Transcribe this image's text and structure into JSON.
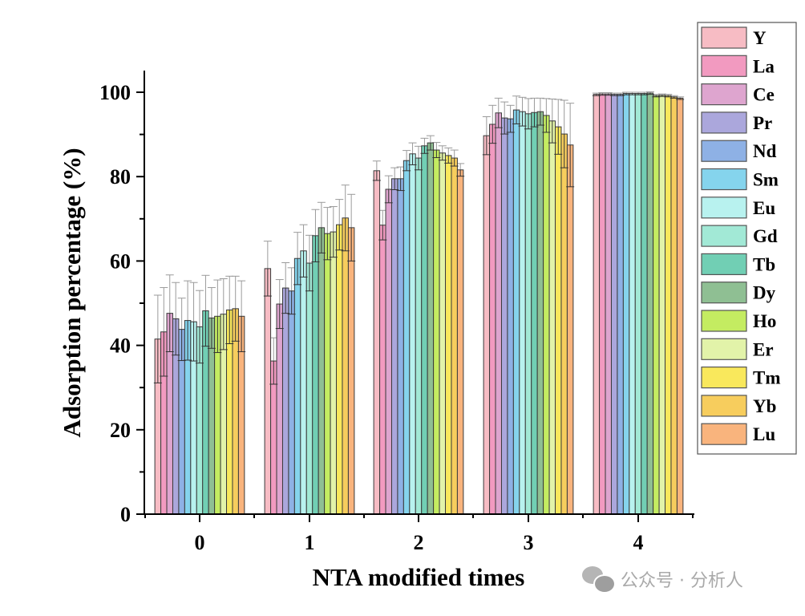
{
  "chart_data": {
    "type": "bar",
    "title": "",
    "xlabel": "NTA modified times",
    "ylabel": "Adsorption percentage (%)",
    "ylim": [
      0,
      105
    ],
    "yticks": [
      0,
      20,
      40,
      60,
      80,
      100
    ],
    "grid": false,
    "legend_position": "right",
    "categories": [
      "0",
      "1",
      "2",
      "3",
      "4"
    ],
    "series": [
      {
        "name": "Y",
        "color": "#f7bcc4",
        "values": [
          41.5,
          58.2,
          81.4,
          89.7,
          99.5
        ],
        "errors": [
          10.4,
          6.5,
          2.3,
          4.5,
          0.3
        ]
      },
      {
        "name": "La",
        "color": "#f29ac0",
        "values": [
          43.2,
          36.3,
          68.5,
          92.4,
          99.6
        ],
        "errors": [
          10.5,
          5.5,
          3.5,
          4.5,
          0.3
        ]
      },
      {
        "name": "Ce",
        "color": "#dea5cf",
        "values": [
          47.6,
          49.8,
          77.0,
          95.1,
          99.6
        ],
        "errors": [
          9.1,
          5.8,
          3.2,
          3.5,
          0.3
        ]
      },
      {
        "name": "Pr",
        "color": "#aba7dc",
        "values": [
          46.3,
          53.6,
          79.5,
          93.9,
          99.5
        ],
        "errors": [
          8.6,
          6.0,
          2.6,
          3.8,
          0.3
        ]
      },
      {
        "name": "Nd",
        "color": "#8eb1e5",
        "values": [
          43.8,
          52.9,
          79.5,
          93.7,
          99.5
        ],
        "errors": [
          7.4,
          5.5,
          2.8,
          3.2,
          0.3
        ]
      },
      {
        "name": "Sm",
        "color": "#85d4ed",
        "values": [
          45.9,
          60.6,
          83.8,
          95.8,
          99.7
        ],
        "errors": [
          9.4,
          6.2,
          2.4,
          3.3,
          0.3
        ]
      },
      {
        "name": "Eu",
        "color": "#b8f2ef",
        "values": [
          45.6,
          62.4,
          85.4,
          95.4,
          99.7
        ],
        "errors": [
          9.3,
          6.2,
          2.6,
          3.4,
          0.3
        ]
      },
      {
        "name": "Gd",
        "color": "#a2e9d6",
        "values": [
          44.4,
          59.5,
          84.4,
          94.9,
          99.7
        ],
        "errors": [
          8.6,
          6.6,
          2.8,
          3.6,
          0.3
        ]
      },
      {
        "name": "Tb",
        "color": "#71cfb4",
        "values": [
          48.2,
          66.0,
          87.3,
          95.2,
          99.7
        ],
        "errors": [
          8.4,
          6.2,
          1.8,
          3.4,
          0.3
        ]
      },
      {
        "name": "Dy",
        "color": "#8fbf93",
        "values": [
          46.5,
          67.9,
          88.0,
          95.4,
          99.8
        ],
        "errors": [
          7.2,
          6.0,
          1.7,
          3.2,
          0.3
        ]
      },
      {
        "name": "Ho",
        "color": "#c4ec61",
        "values": [
          46.9,
          66.5,
          86.3,
          94.5,
          99.2
        ],
        "errors": [
          8.6,
          6.2,
          1.8,
          4.0,
          0.3
        ]
      },
      {
        "name": "Er",
        "color": "#e2f3a9",
        "values": [
          47.4,
          66.9,
          85.6,
          93.2,
          99.3
        ],
        "errors": [
          8.4,
          6.0,
          1.7,
          5.2,
          0.3
        ]
      },
      {
        "name": "Tm",
        "color": "#f9e85c",
        "values": [
          48.4,
          68.6,
          85.0,
          91.8,
          99.2
        ],
        "errors": [
          8.0,
          6.0,
          1.8,
          6.5,
          0.3
        ]
      },
      {
        "name": "Yb",
        "color": "#f7cd5d",
        "values": [
          48.7,
          70.2,
          84.4,
          90.1,
          98.9
        ],
        "errors": [
          7.7,
          7.8,
          1.9,
          8.0,
          0.3
        ]
      },
      {
        "name": "Lu",
        "color": "#f9b47d",
        "values": [
          46.9,
          67.9,
          81.6,
          87.5,
          98.6
        ],
        "errors": [
          8.4,
          7.9,
          1.5,
          9.9,
          0.3
        ]
      }
    ]
  },
  "watermark": {
    "text": "公众号 · 分析人"
  }
}
